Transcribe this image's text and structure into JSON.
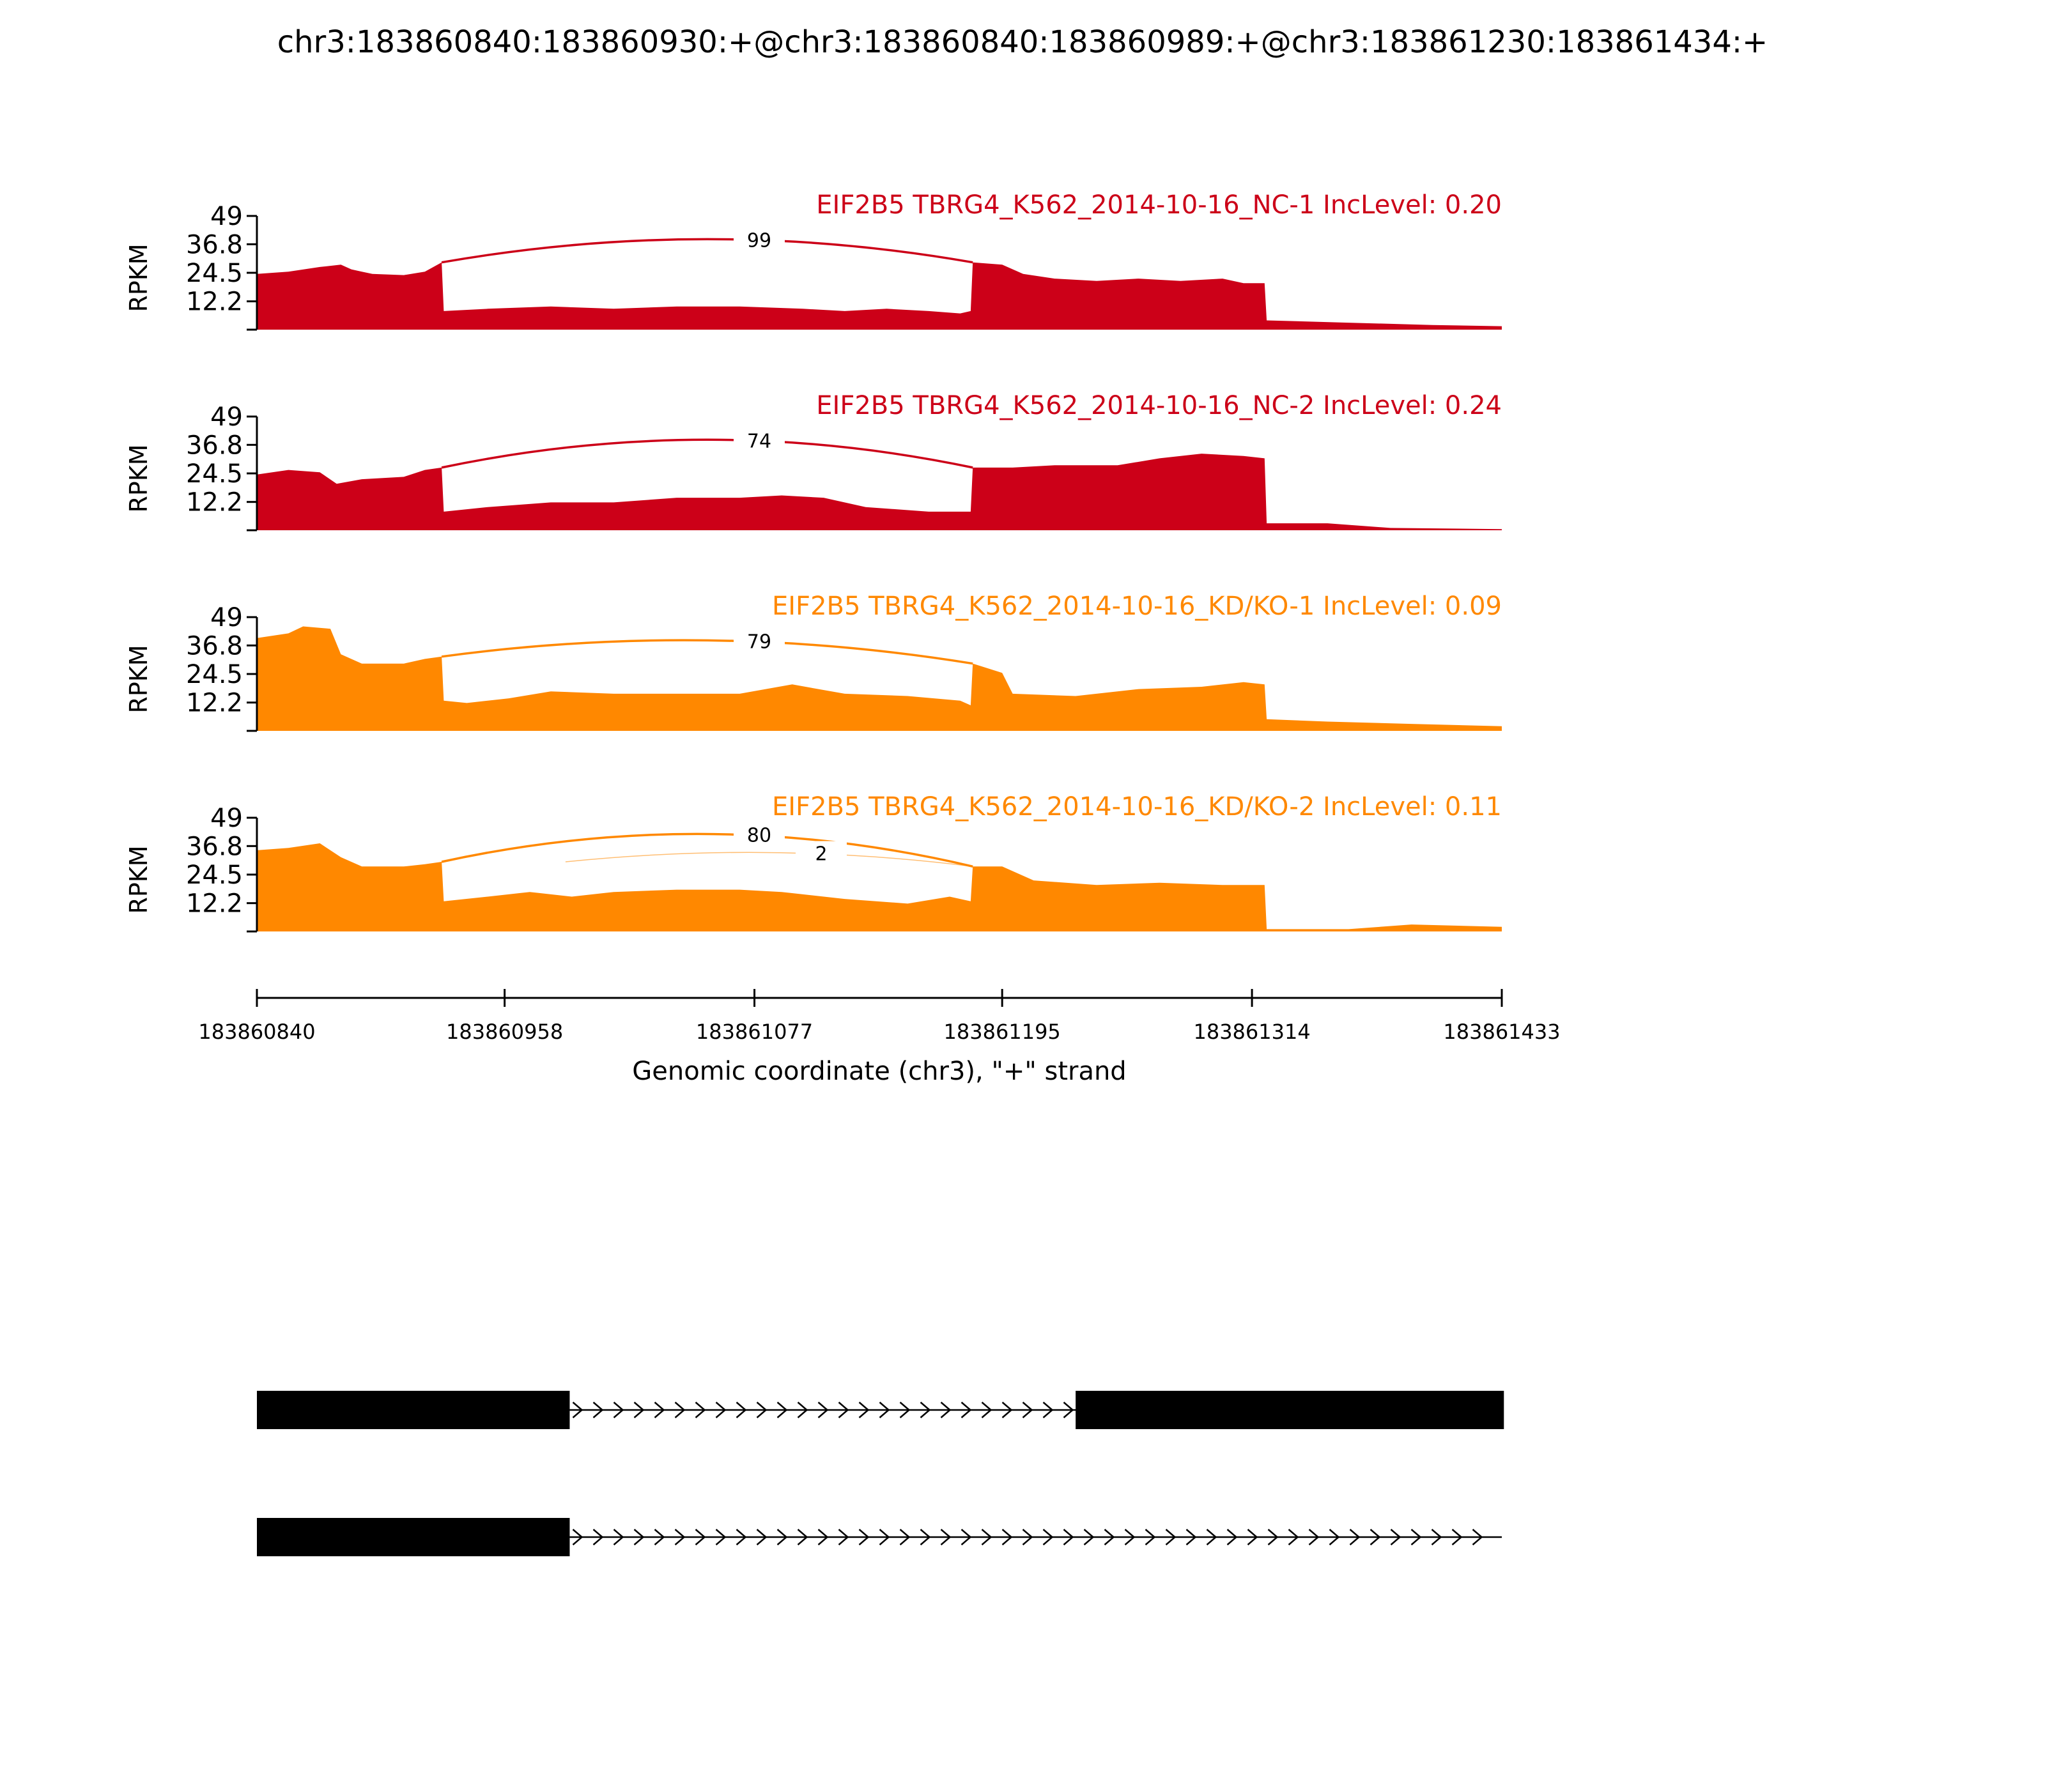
{
  "title": "chr3:183860840:183860930:+@chr3:183860840:183860989:+@chr3:183861230:183861434:+",
  "colors": {
    "nc": "#cc0018",
    "kd": "#ff8800",
    "axis": "#000000",
    "gene": "#000000"
  },
  "chart_data": {
    "type": "area",
    "y_axis_label": "RPKM",
    "y_ticks": [
      "12.2",
      "24.5",
      "36.8",
      "49"
    ],
    "ylim": [
      0,
      49
    ],
    "xlim": [
      183860840,
      183861433
    ],
    "x_ticks": [
      183860840,
      183860958,
      183861077,
      183861195,
      183861314,
      183861433
    ],
    "x_tick_labels": [
      "183860840",
      "183860958",
      "183861077",
      "183861195",
      "183861314",
      "183861433"
    ],
    "x_axis_label": "Genomic coordinate (chr3), \"+\" strand",
    "tracks": [
      {
        "label": "EIF2B5 TBRG4_K562_2014-10-16_NC-1 IncLevel: 0.20",
        "color_key": "nc",
        "coverage": [
          [
            183860840,
            24
          ],
          [
            183860855,
            25
          ],
          [
            183860870,
            27
          ],
          [
            183860880,
            28
          ],
          [
            183860885,
            26
          ],
          [
            183860890,
            25
          ],
          [
            183860895,
            24
          ],
          [
            183860910,
            23.5
          ],
          [
            183860920,
            25
          ],
          [
            183860928,
            29
          ],
          [
            183860929,
            8
          ],
          [
            183860950,
            9
          ],
          [
            183860980,
            10
          ],
          [
            183861010,
            9
          ],
          [
            183861040,
            10
          ],
          [
            183861070,
            10
          ],
          [
            183861100,
            9
          ],
          [
            183861120,
            8
          ],
          [
            183861140,
            9
          ],
          [
            183861160,
            8
          ],
          [
            183861175,
            7
          ],
          [
            183861180,
            8
          ],
          [
            183861181,
            29
          ],
          [
            183861195,
            28
          ],
          [
            183861205,
            24
          ],
          [
            183861220,
            22
          ],
          [
            183861240,
            21
          ],
          [
            183861260,
            22
          ],
          [
            183861280,
            21
          ],
          [
            183861300,
            22
          ],
          [
            183861310,
            20
          ],
          [
            183861320,
            20
          ],
          [
            183861321,
            4
          ],
          [
            183861360,
            3
          ],
          [
            183861400,
            2
          ],
          [
            183861433,
            1.5
          ]
        ],
        "junctions": [
          {
            "label": "99",
            "start": 183860928,
            "end": 183861181,
            "height": 39
          }
        ]
      },
      {
        "label": "EIF2B5 TBRG4_K562_2014-10-16_NC-2 IncLevel: 0.24",
        "color_key": "nc",
        "coverage": [
          [
            183860840,
            24
          ],
          [
            183860855,
            26
          ],
          [
            183860870,
            25
          ],
          [
            183860878,
            20
          ],
          [
            183860890,
            22
          ],
          [
            183860910,
            23
          ],
          [
            183860920,
            26
          ],
          [
            183860928,
            27
          ],
          [
            183860929,
            8
          ],
          [
            183860950,
            10
          ],
          [
            183860980,
            12
          ],
          [
            183861010,
            12
          ],
          [
            183861040,
            14
          ],
          [
            183861070,
            14
          ],
          [
            183861090,
            15
          ],
          [
            183861110,
            14
          ],
          [
            183861130,
            10
          ],
          [
            183861160,
            8
          ],
          [
            183861180,
            8
          ],
          [
            183861181,
            27
          ],
          [
            183861200,
            27
          ],
          [
            183861220,
            28
          ],
          [
            183861250,
            28
          ],
          [
            183861270,
            31
          ],
          [
            183861290,
            33
          ],
          [
            183861310,
            32
          ],
          [
            183861320,
            31
          ],
          [
            183861321,
            3
          ],
          [
            183861350,
            3
          ],
          [
            183861380,
            1
          ],
          [
            183861433,
            0.5
          ]
        ],
        "junctions": [
          {
            "label": "74",
            "start": 183860928,
            "end": 183861181,
            "height": 39
          }
        ]
      },
      {
        "label": "EIF2B5 TBRG4_K562_2014-10-16_KD/KO-1 IncLevel: 0.09",
        "color_key": "kd",
        "coverage": [
          [
            183860840,
            40
          ],
          [
            183860855,
            42
          ],
          [
            183860862,
            45
          ],
          [
            183860875,
            44
          ],
          [
            183860880,
            33
          ],
          [
            183860890,
            29
          ],
          [
            183860910,
            29
          ],
          [
            183860920,
            31
          ],
          [
            183860928,
            32
          ],
          [
            183860929,
            13
          ],
          [
            183860940,
            12
          ],
          [
            183860960,
            14
          ],
          [
            183860980,
            17
          ],
          [
            183861010,
            16
          ],
          [
            183861040,
            16
          ],
          [
            183861070,
            16
          ],
          [
            183861095,
            20
          ],
          [
            183861120,
            16
          ],
          [
            183861150,
            15
          ],
          [
            183861175,
            13
          ],
          [
            183861180,
            11
          ],
          [
            183861181,
            29
          ],
          [
            183861195,
            25
          ],
          [
            183861200,
            16
          ],
          [
            183861230,
            15
          ],
          [
            183861260,
            18
          ],
          [
            183861290,
            19
          ],
          [
            183861310,
            21
          ],
          [
            183861320,
            20
          ],
          [
            183861321,
            5
          ],
          [
            183861350,
            4
          ],
          [
            183861390,
            3
          ],
          [
            183861433,
            2
          ]
        ],
        "junctions": [
          {
            "label": "79",
            "start": 183860928,
            "end": 183861181,
            "height": 39
          }
        ]
      },
      {
        "label": "EIF2B5 TBRG4_K562_2014-10-16_KD/KO-2 IncLevel: 0.11",
        "color_key": "kd",
        "coverage": [
          [
            183860840,
            35
          ],
          [
            183860855,
            36
          ],
          [
            183860870,
            38
          ],
          [
            183860880,
            32
          ],
          [
            183860890,
            28
          ],
          [
            183860910,
            28
          ],
          [
            183860920,
            29
          ],
          [
            183860928,
            30
          ],
          [
            183860929,
            13
          ],
          [
            183860950,
            15
          ],
          [
            183860970,
            17
          ],
          [
            183860990,
            15
          ],
          [
            183861010,
            17
          ],
          [
            183861040,
            18
          ],
          [
            183861070,
            18
          ],
          [
            183861090,
            17
          ],
          [
            183861120,
            14
          ],
          [
            183861150,
            12
          ],
          [
            183861170,
            15
          ],
          [
            183861180,
            13
          ],
          [
            183861181,
            28
          ],
          [
            183861195,
            28
          ],
          [
            183861210,
            22
          ],
          [
            183861240,
            20
          ],
          [
            183861270,
            21
          ],
          [
            183861300,
            20
          ],
          [
            183861320,
            20
          ],
          [
            183861321,
            1
          ],
          [
            183861360,
            1
          ],
          [
            183861390,
            3
          ],
          [
            183861433,
            2
          ]
        ],
        "junctions": [
          {
            "label": "80",
            "start": 183860928,
            "end": 183861181,
            "height": 42
          },
          {
            "label": "2",
            "start": 183860987,
            "end": 183861181,
            "height": 34
          }
        ]
      }
    ],
    "transcripts": [
      {
        "exons": [
          [
            183860840,
            183860989
          ],
          [
            183861230,
            183861434
          ]
        ],
        "line_end": 183861433
      },
      {
        "exons": [
          [
            183860840,
            183860989
          ]
        ],
        "line_end": 183861433
      }
    ]
  }
}
